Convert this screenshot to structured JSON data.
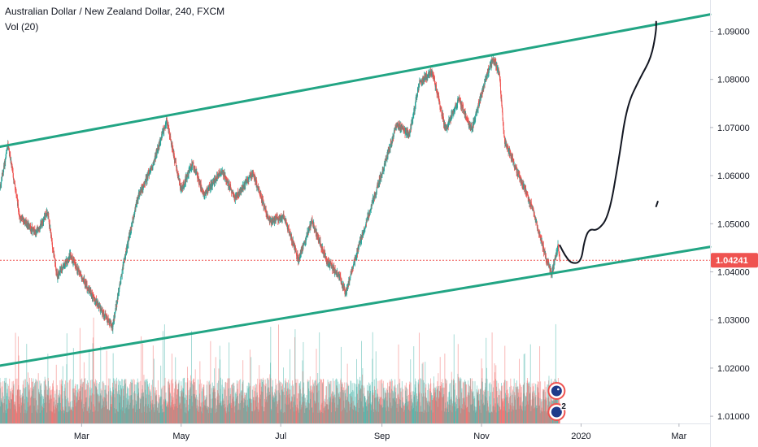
{
  "header": {
    "symbol_title": "Australian Dollar / New Zealand Dollar, 240, FXCM",
    "volume_label": "Vol (20)"
  },
  "colors": {
    "up": "#26a69a",
    "down": "#ef5350",
    "channel": "#22a584",
    "last_price_line": "#ef5350",
    "drawing": "#131722"
  },
  "chart_data": {
    "type": "candlestick",
    "title": "Australian Dollar / New Zealand Dollar, 240, FXCM",
    "indicator": "Vol (20)",
    "x_tick_labels": [
      "Mar",
      "May",
      "Jul",
      "Sep",
      "Nov",
      "2020",
      "Mar"
    ],
    "x_tick_dates": [
      "2019-03-01",
      "2019-05-01",
      "2019-07-01",
      "2019-09-01",
      "2019-11-01",
      "2020-01-01",
      "2020-03-01"
    ],
    "x_range": [
      "2019-01-10",
      "2020-03-20"
    ],
    "y_tick_labels": [
      "1.01000",
      "1.02000",
      "1.03000",
      "1.04000",
      "1.05000",
      "1.06000",
      "1.07000",
      "1.08000",
      "1.09000"
    ],
    "y_ticks": [
      1.01,
      1.02,
      1.03,
      1.04,
      1.05,
      1.06,
      1.07,
      1.08,
      1.09
    ],
    "ylim": [
      1.0085,
      1.0965
    ],
    "last_price": 1.04241,
    "last_price_label": "1.04241",
    "price_path": [
      [
        "2019-01-10",
        1.0575
      ],
      [
        "2019-01-15",
        1.0665
      ],
      [
        "2019-01-22",
        1.0515
      ],
      [
        "2019-02-01",
        1.048
      ],
      [
        "2019-02-08",
        1.0525
      ],
      [
        "2019-02-14",
        1.039
      ],
      [
        "2019-02-22",
        1.0435
      ],
      [
        "2019-03-05",
        1.0365
      ],
      [
        "2019-03-12",
        1.0325
      ],
      [
        "2019-03-20",
        1.0285
      ],
      [
        "2019-03-26",
        1.0405
      ],
      [
        "2019-04-04",
        1.055
      ],
      [
        "2019-04-14",
        1.0625
      ],
      [
        "2019-04-22",
        1.0715
      ],
      [
        "2019-05-01",
        1.057
      ],
      [
        "2019-05-08",
        1.0625
      ],
      [
        "2019-05-15",
        1.056
      ],
      [
        "2019-05-26",
        1.061
      ],
      [
        "2019-06-03",
        1.0555
      ],
      [
        "2019-06-14",
        1.0605
      ],
      [
        "2019-06-24",
        1.0505
      ],
      [
        "2019-07-03",
        1.0515
      ],
      [
        "2019-07-12",
        1.0425
      ],
      [
        "2019-07-20",
        1.0505
      ],
      [
        "2019-07-29",
        1.0425
      ],
      [
        "2019-08-06",
        1.039
      ],
      [
        "2019-08-10",
        1.0355
      ],
      [
        "2019-08-14",
        1.041
      ],
      [
        "2019-08-23",
        1.051
      ],
      [
        "2019-09-01",
        1.0605
      ],
      [
        "2019-09-10",
        1.0705
      ],
      [
        "2019-09-18",
        1.0685
      ],
      [
        "2019-09-24",
        1.0795
      ],
      [
        "2019-10-02",
        1.0815
      ],
      [
        "2019-10-10",
        1.0695
      ],
      [
        "2019-10-18",
        1.076
      ],
      [
        "2019-10-26",
        1.0695
      ],
      [
        "2019-11-03",
        1.0795
      ],
      [
        "2019-11-08",
        1.0845
      ],
      [
        "2019-11-12",
        1.081
      ],
      [
        "2019-11-15",
        1.0675
      ],
      [
        "2019-11-22",
        1.0615
      ],
      [
        "2019-12-02",
        1.0535
      ],
      [
        "2019-12-10",
        1.0435
      ],
      [
        "2019-12-14",
        1.0395
      ],
      [
        "2019-12-18",
        1.0455
      ],
      [
        "2019-12-19",
        1.0424
      ]
    ],
    "volume_ylim": [
      0,
      3200
    ],
    "channel_upper": [
      [
        "2019-01-10",
        1.066
      ],
      [
        "2020-03-20",
        1.0935
      ]
    ],
    "channel_lower": [
      [
        "2019-01-10",
        1.0205
      ],
      [
        "2020-03-20",
        1.0452
      ]
    ],
    "projection_path": [
      [
        "2019-12-19",
        1.0455
      ],
      [
        "2019-12-22",
        1.0435
      ],
      [
        "2019-12-26",
        1.0417
      ],
      [
        "2020-01-01",
        1.042
      ],
      [
        "2020-01-03",
        1.0465
      ],
      [
        "2020-01-06",
        1.049
      ],
      [
        "2020-01-11",
        1.0485
      ],
      [
        "2020-01-18",
        1.0515
      ],
      [
        "2020-01-24",
        1.063
      ],
      [
        "2020-01-29",
        1.0745
      ],
      [
        "2020-02-06",
        1.0802
      ],
      [
        "2020-02-13",
        1.0845
      ],
      [
        "2020-02-16",
        1.09
      ],
      [
        "2020-02-16",
        1.092
      ]
    ],
    "projection_tick": [
      [
        "2020-02-16",
        1.0536
      ],
      [
        "2020-02-17",
        1.0546
      ]
    ],
    "event_badge_count": "2"
  }
}
